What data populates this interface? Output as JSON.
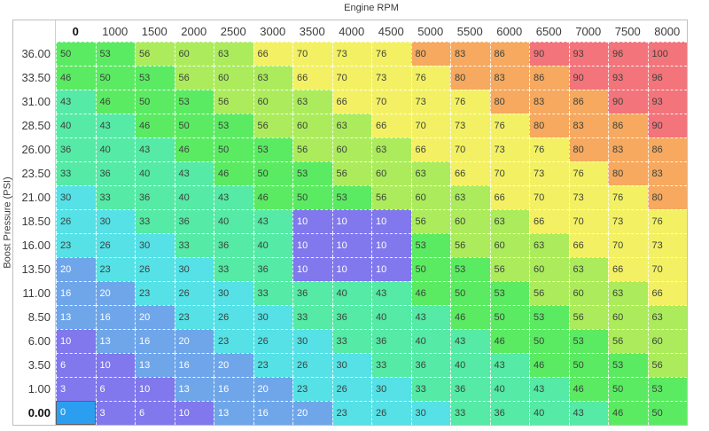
{
  "axes": {
    "x_title": "Engine RPM",
    "y_title": "Boost Pressure (PSI)"
  },
  "table": {
    "column_headers": [
      "0",
      "1000",
      "1500",
      "2000",
      "2500",
      "3000",
      "3500",
      "4000",
      "4500",
      "5000",
      "5500",
      "6000",
      "6500",
      "7000",
      "7500",
      "8000"
    ],
    "row_headers": [
      "36.00",
      "33.50",
      "31.00",
      "28.50",
      "26.00",
      "23.50",
      "21.00",
      "18.50",
      "16.00",
      "13.50",
      "11.00",
      "8.50",
      "6.00",
      "3.50",
      "1.00",
      "0.00"
    ],
    "values": [
      [
        50,
        53,
        56,
        60,
        63,
        66,
        70,
        73,
        76,
        80,
        83,
        86,
        90,
        93,
        96,
        100
      ],
      [
        46,
        50,
        53,
        56,
        60,
        63,
        66,
        70,
        73,
        76,
        80,
        83,
        86,
        90,
        93,
        96
      ],
      [
        43,
        46,
        50,
        53,
        56,
        60,
        63,
        66,
        70,
        73,
        76,
        80,
        83,
        86,
        90,
        93
      ],
      [
        40,
        43,
        46,
        50,
        53,
        56,
        60,
        63,
        66,
        70,
        73,
        76,
        80,
        83,
        86,
        90
      ],
      [
        36,
        40,
        43,
        46,
        50,
        53,
        56,
        60,
        63,
        66,
        70,
        73,
        76,
        80,
        83,
        86
      ],
      [
        33,
        36,
        40,
        43,
        46,
        50,
        53,
        56,
        60,
        63,
        66,
        70,
        73,
        76,
        80,
        83
      ],
      [
        30,
        33,
        36,
        40,
        43,
        46,
        50,
        53,
        56,
        60,
        63,
        66,
        70,
        73,
        76,
        80
      ],
      [
        26,
        30,
        33,
        36,
        40,
        43,
        10,
        10,
        10,
        56,
        60,
        63,
        66,
        70,
        73,
        76
      ],
      [
        23,
        26,
        30,
        33,
        36,
        40,
        10,
        10,
        10,
        53,
        56,
        60,
        63,
        66,
        70,
        73
      ],
      [
        20,
        23,
        26,
        30,
        33,
        36,
        10,
        10,
        10,
        50,
        53,
        56,
        60,
        63,
        66,
        70
      ],
      [
        16,
        20,
        23,
        26,
        30,
        33,
        36,
        40,
        43,
        46,
        50,
        53,
        56,
        60,
        63,
        66
      ],
      [
        13,
        16,
        20,
        23,
        26,
        30,
        33,
        36,
        40,
        43,
        46,
        50,
        53,
        56,
        60,
        63
      ],
      [
        10,
        13,
        16,
        20,
        23,
        26,
        30,
        33,
        36,
        40,
        43,
        46,
        50,
        53,
        56,
        60
      ],
      [
        6,
        10,
        13,
        16,
        20,
        23,
        26,
        30,
        33,
        36,
        40,
        43,
        46,
        50,
        53,
        56
      ],
      [
        3,
        6,
        10,
        13,
        16,
        20,
        23,
        26,
        30,
        33,
        36,
        40,
        43,
        46,
        50,
        53
      ],
      [
        0,
        3,
        6,
        10,
        13,
        16,
        20,
        23,
        26,
        30,
        33,
        36,
        40,
        43,
        46,
        50
      ]
    ],
    "selected_cell": {
      "row_index": 15,
      "col_index": 0,
      "row_label": "0.00",
      "col_label": "0"
    }
  },
  "colors": {
    "selected_bg": "#2B9EEF",
    "selected_border": "#5F5F5F",
    "cell_text_dark": "#3B423D",
    "cell_text_light": "#FFFFFF",
    "table_border": "#BFBFBF",
    "colormap": [
      {
        "max": 12,
        "bg": "#8078EC",
        "fg": "light"
      },
      {
        "max": 22,
        "bg": "#6FA6EA",
        "fg": "light"
      },
      {
        "max": 32,
        "bg": "#55E1E6",
        "fg": "dark"
      },
      {
        "max": 45,
        "bg": "#55EAA5",
        "fg": "dark"
      },
      {
        "max": 55,
        "bg": "#5BEB62",
        "fg": "dark"
      },
      {
        "max": 65,
        "bg": "#ACEC5C",
        "fg": "dark"
      },
      {
        "max": 79,
        "bg": "#F3F163",
        "fg": "dark"
      },
      {
        "max": 89,
        "bg": "#F6A95F",
        "fg": "dark"
      },
      {
        "max": 100,
        "bg": "#F3747B",
        "fg": "dark"
      }
    ]
  }
}
